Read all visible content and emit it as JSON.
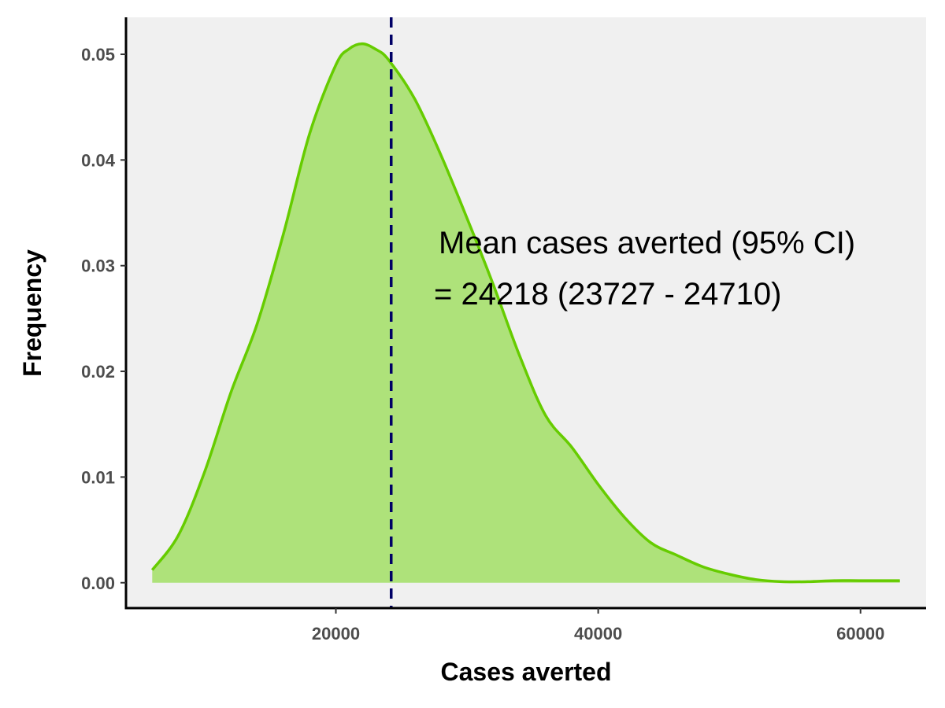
{
  "chart_data": {
    "type": "area",
    "title": "",
    "xlabel": "Cases averted",
    "ylabel": "Frequency",
    "xlim": [
      4000,
      65000
    ],
    "ylim": [
      -0.0024,
      0.0535
    ],
    "x_ticks": [
      20000,
      40000,
      60000
    ],
    "x_tick_labels": [
      "20000",
      "40000",
      "60000"
    ],
    "y_ticks": [
      0.0,
      0.01,
      0.02,
      0.03,
      0.04,
      0.05
    ],
    "y_tick_labels": [
      "0.00",
      "0.01",
      "0.02",
      "0.03",
      "0.04",
      "0.05"
    ],
    "grid": false,
    "panel_background": "#f0f0f0",
    "series": [
      {
        "x": [
          6000,
          8000,
          10000,
          12000,
          14000,
          16000,
          18000,
          20000,
          21000,
          22000,
          23000,
          24000,
          26000,
          28000,
          30000,
          32000,
          34000,
          36000,
          38000,
          40000,
          42000,
          44000,
          46000,
          48000,
          50000,
          52000,
          54000,
          56000,
          58000,
          60000,
          63000
        ],
        "y": [
          0.0012,
          0.0045,
          0.0105,
          0.018,
          0.0245,
          0.033,
          0.0425,
          0.049,
          0.0505,
          0.051,
          0.0505,
          0.0495,
          0.0458,
          0.0405,
          0.0345,
          0.0282,
          0.0215,
          0.0158,
          0.0128,
          0.0093,
          0.0062,
          0.0038,
          0.0026,
          0.0015,
          0.0008,
          0.0003,
          0.0001,
          0.0001,
          0.0002,
          0.0002,
          0.0002
        ],
        "fill": "#aee27a",
        "stroke": "#66cc00"
      }
    ],
    "mean_line": {
      "x": 24218,
      "color": "#000066",
      "style": "dashed"
    },
    "annotation": {
      "line1": "Mean cases averted (95% CI)",
      "line2": "= 24218 (23727 - 24710)"
    }
  }
}
